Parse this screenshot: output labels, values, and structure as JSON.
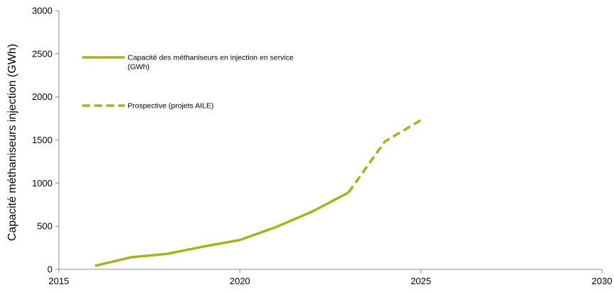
{
  "chart_data": {
    "type": "line",
    "title": "",
    "xlabel": "",
    "ylabel": "Capacité méthaniseurs injection (GWh)",
    "xlim": [
      2015,
      2030
    ],
    "ylim": [
      0,
      3000
    ],
    "xticks": [
      2015,
      2020,
      2025,
      2030
    ],
    "yticks": [
      0,
      500,
      1000,
      1500,
      2000,
      2500,
      3000
    ],
    "grid": false,
    "legend_position": "top-left",
    "series": [
      {
        "name": "Capacité des méthaniseurs en injection en service (GWh)",
        "name_lines": [
          "Capacité des méthaniseurs en injection en service",
          "(GWh)"
        ],
        "style": "solid",
        "color": "#a8b21e",
        "x": [
          2016,
          2017,
          2018,
          2019,
          2020,
          2021,
          2022,
          2023
        ],
        "y": [
          40,
          140,
          180,
          265,
          340,
          490,
          670,
          890
        ]
      },
      {
        "name": "Prospective (projets AILE)",
        "name_lines": [
          "Prospective (projets AILE)"
        ],
        "style": "dashed",
        "color": "#a8b21e",
        "x": [
          2023,
          2024,
          2025
        ],
        "y": [
          890,
          1480,
          1730
        ]
      }
    ]
  }
}
